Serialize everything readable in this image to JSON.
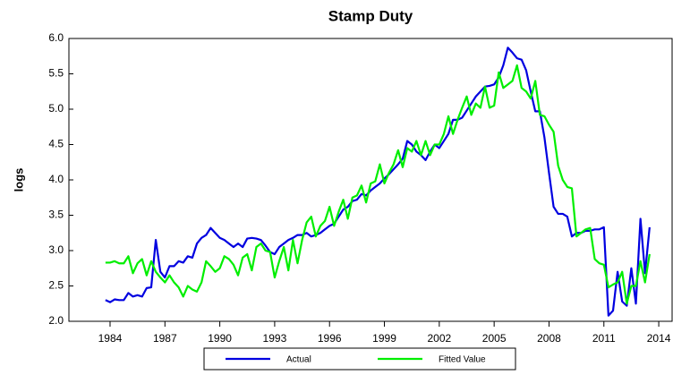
{
  "chart_data": {
    "type": "line",
    "title": "Stamp Duty",
    "y_label": "logs",
    "x": [
      1983.75,
      1984,
      1984.25,
      1984.5,
      1984.75,
      1985,
      1985.25,
      1985.5,
      1985.75,
      1986,
      1986.25,
      1986.5,
      1986.75,
      1987,
      1987.25,
      1987.5,
      1987.75,
      1988,
      1988.25,
      1988.5,
      1988.75,
      1989,
      1989.25,
      1989.5,
      1989.75,
      1990,
      1990.25,
      1990.5,
      1990.75,
      1991,
      1991.25,
      1991.5,
      1991.75,
      1992,
      1992.25,
      1992.5,
      1992.75,
      1993,
      1993.25,
      1993.5,
      1993.75,
      1994,
      1994.25,
      1994.5,
      1994.75,
      1995,
      1995.25,
      1995.5,
      1995.75,
      1996,
      1996.25,
      1996.5,
      1996.75,
      1997,
      1997.25,
      1997.5,
      1997.75,
      1998,
      1998.25,
      1998.5,
      1998.75,
      1999,
      1999.25,
      1999.5,
      1999.75,
      2000,
      2000.25,
      2000.5,
      2000.75,
      2001,
      2001.25,
      2001.5,
      2001.75,
      2002,
      2002.25,
      2002.5,
      2002.75,
      2003,
      2003.25,
      2003.5,
      2003.75,
      2004,
      2004.25,
      2004.5,
      2004.75,
      2005,
      2005.25,
      2005.5,
      2005.75,
      2006,
      2006.25,
      2006.5,
      2006.75,
      2007,
      2007.25,
      2007.5,
      2007.75,
      2008,
      2008.25,
      2008.5,
      2008.75,
      2009,
      2009.25,
      2009.5,
      2009.75,
      2010,
      2010.25,
      2010.5,
      2010.75,
      2011,
      2011.25,
      2011.5,
      2011.75,
      2012,
      2012.25,
      2012.5,
      2012.75,
      2013,
      2013.25,
      2013.5
    ],
    "series": [
      {
        "name": "Actual",
        "color": "#0000e0",
        "values": [
          2.3,
          2.27,
          2.31,
          2.3,
          2.3,
          2.4,
          2.35,
          2.37,
          2.35,
          2.47,
          2.48,
          3.15,
          2.7,
          2.62,
          2.78,
          2.78,
          2.85,
          2.83,
          2.92,
          2.9,
          3.1,
          3.18,
          3.22,
          3.32,
          3.25,
          3.18,
          3.15,
          3.1,
          3.05,
          3.1,
          3.05,
          3.17,
          3.18,
          3.17,
          3.15,
          3.07,
          2.98,
          2.95,
          3.05,
          3.1,
          3.15,
          3.18,
          3.22,
          3.22,
          3.25,
          3.2,
          3.22,
          3.25,
          3.3,
          3.35,
          3.38,
          3.48,
          3.58,
          3.62,
          3.7,
          3.72,
          3.8,
          3.78,
          3.85,
          3.9,
          3.95,
          4.02,
          4.08,
          4.15,
          4.22,
          4.3,
          4.55,
          4.5,
          4.4,
          4.35,
          4.28,
          4.4,
          4.5,
          4.45,
          4.55,
          4.65,
          4.85,
          4.85,
          4.88,
          4.98,
          5.08,
          5.18,
          5.25,
          5.32,
          5.33,
          5.35,
          5.45,
          5.62,
          5.87,
          5.8,
          5.72,
          5.7,
          5.55,
          5.25,
          4.97,
          4.97,
          4.6,
          4.1,
          3.62,
          3.52,
          3.52,
          3.48,
          3.2,
          3.25,
          3.25,
          3.28,
          3.28,
          3.3,
          3.3,
          3.33,
          2.08,
          2.15,
          2.7,
          2.28,
          2.22,
          2.75,
          2.25,
          3.45,
          2.68,
          3.33
        ]
      },
      {
        "name": "Fitted Value",
        "color": "#00ee00",
        "values": [
          2.83,
          2.83,
          2.85,
          2.82,
          2.82,
          2.92,
          2.68,
          2.82,
          2.88,
          2.65,
          2.85,
          2.7,
          2.62,
          2.55,
          2.65,
          2.55,
          2.48,
          2.35,
          2.5,
          2.45,
          2.42,
          2.55,
          2.85,
          2.78,
          2.7,
          2.75,
          2.92,
          2.88,
          2.8,
          2.65,
          2.9,
          2.95,
          2.72,
          3.05,
          3.1,
          3.0,
          2.98,
          2.62,
          2.85,
          3.05,
          2.72,
          3.15,
          2.82,
          3.15,
          3.4,
          3.48,
          3.2,
          3.35,
          3.42,
          3.62,
          3.35,
          3.55,
          3.72,
          3.45,
          3.75,
          3.78,
          3.92,
          3.68,
          3.95,
          3.98,
          4.22,
          3.95,
          4.1,
          4.22,
          4.42,
          4.18,
          4.45,
          4.4,
          4.55,
          4.35,
          4.55,
          4.35,
          4.5,
          4.5,
          4.65,
          4.9,
          4.65,
          4.85,
          5.02,
          5.18,
          4.92,
          5.08,
          5.02,
          5.32,
          5.02,
          5.05,
          5.52,
          5.3,
          5.35,
          5.4,
          5.62,
          5.3,
          5.25,
          5.15,
          5.4,
          4.92,
          4.9,
          4.78,
          4.68,
          4.2,
          4.0,
          3.9,
          3.88,
          3.2,
          3.25,
          3.3,
          3.32,
          2.88,
          2.82,
          2.8,
          2.48,
          2.52,
          2.55,
          2.7,
          2.25,
          2.5,
          2.5,
          2.85,
          2.55,
          2.95
        ]
      }
    ],
    "xlim": [
      1981.75,
      2014.73
    ],
    "xticks": [
      1984,
      1987,
      1990,
      1993,
      1996,
      1999,
      2002,
      2005,
      2008,
      2011,
      2014
    ],
    "ylim": [
      2.0,
      6.0
    ],
    "yticks": [
      {
        "value": 2,
        "label": "2.0"
      },
      2.5,
      {
        "value": 3,
        "label": "3.0"
      },
      3.5,
      {
        "value": 4,
        "label": "4.0"
      },
      4.5,
      {
        "value": 5,
        "label": "5.0"
      },
      5.5,
      {
        "value": 6,
        "label": "6.0"
      }
    ],
    "grid": false,
    "legend": "bottom"
  }
}
